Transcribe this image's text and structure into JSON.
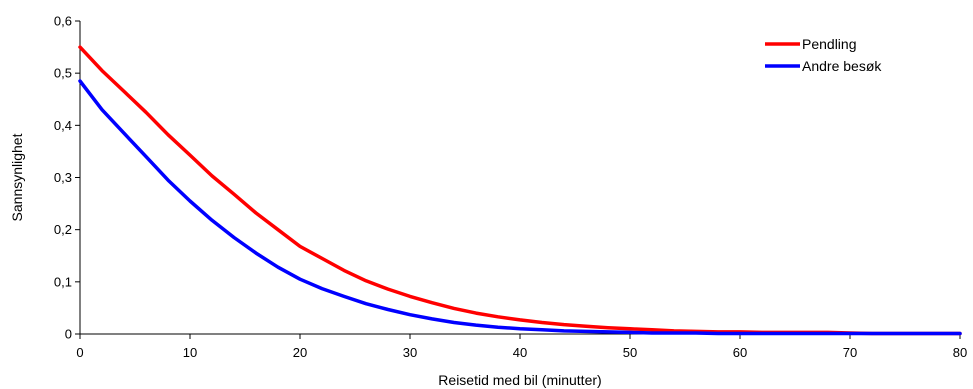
{
  "chart_data": {
    "type": "line",
    "title": "",
    "xlabel": "Reisetid med bil (minutter)",
    "ylabel": "Sannsynlighet",
    "xlim": [
      0,
      80
    ],
    "ylim": [
      0,
      0.6
    ],
    "xticks": [
      0,
      10,
      20,
      30,
      40,
      50,
      60,
      70,
      80
    ],
    "xtick_labels": [
      "0",
      "10",
      "20",
      "30",
      "40",
      "50",
      "60",
      "70",
      "80"
    ],
    "yticks": [
      0,
      0.1,
      0.2,
      0.3,
      0.4,
      0.5,
      0.6
    ],
    "ytick_labels": [
      "0",
      "0,1",
      "0,2",
      "0,3",
      "0,4",
      "0,5",
      "0,6"
    ],
    "grid": false,
    "legend_position": "top-right",
    "series": [
      {
        "name": "Pendling",
        "color": "#ff0000",
        "x": [
          0,
          2,
          4,
          6,
          8,
          10,
          12,
          14,
          16,
          18,
          20,
          22,
          24,
          26,
          28,
          30,
          32,
          34,
          36,
          38,
          40,
          42,
          44,
          46,
          48,
          50,
          52,
          54,
          56,
          58,
          60,
          62,
          64,
          66,
          68,
          70,
          72,
          74,
          76,
          78,
          80
        ],
        "y": [
          0.55,
          0.505,
          0.465,
          0.425,
          0.382,
          0.343,
          0.303,
          0.268,
          0.232,
          0.2,
          0.168,
          0.145,
          0.122,
          0.102,
          0.086,
          0.072,
          0.06,
          0.049,
          0.04,
          0.033,
          0.027,
          0.022,
          0.018,
          0.015,
          0.012,
          0.01,
          0.008,
          0.006,
          0.005,
          0.004,
          0.004,
          0.003,
          0.003,
          0.003,
          0.003,
          0.002,
          0.001,
          0.001,
          0.001,
          0.001,
          0.001
        ]
      },
      {
        "name": "Andre besøk",
        "color": "#0000ff",
        "x": [
          0,
          2,
          4,
          6,
          8,
          10,
          12,
          14,
          16,
          18,
          20,
          22,
          24,
          26,
          28,
          30,
          32,
          34,
          36,
          38,
          40,
          42,
          44,
          46,
          48,
          50,
          52,
          54,
          56,
          58,
          60,
          62,
          64,
          66,
          68,
          70,
          72,
          74,
          76,
          78,
          80
        ],
        "y": [
          0.485,
          0.43,
          0.385,
          0.34,
          0.295,
          0.255,
          0.218,
          0.185,
          0.155,
          0.128,
          0.105,
          0.087,
          0.072,
          0.058,
          0.047,
          0.037,
          0.029,
          0.022,
          0.017,
          0.013,
          0.01,
          0.008,
          0.006,
          0.005,
          0.004,
          0.003,
          0.002,
          0.002,
          0.002,
          0.001,
          0.001,
          0.001,
          0.001,
          0.001,
          0.001,
          0.001,
          0.001,
          0.001,
          0.001,
          0.001,
          0.001
        ]
      }
    ]
  }
}
